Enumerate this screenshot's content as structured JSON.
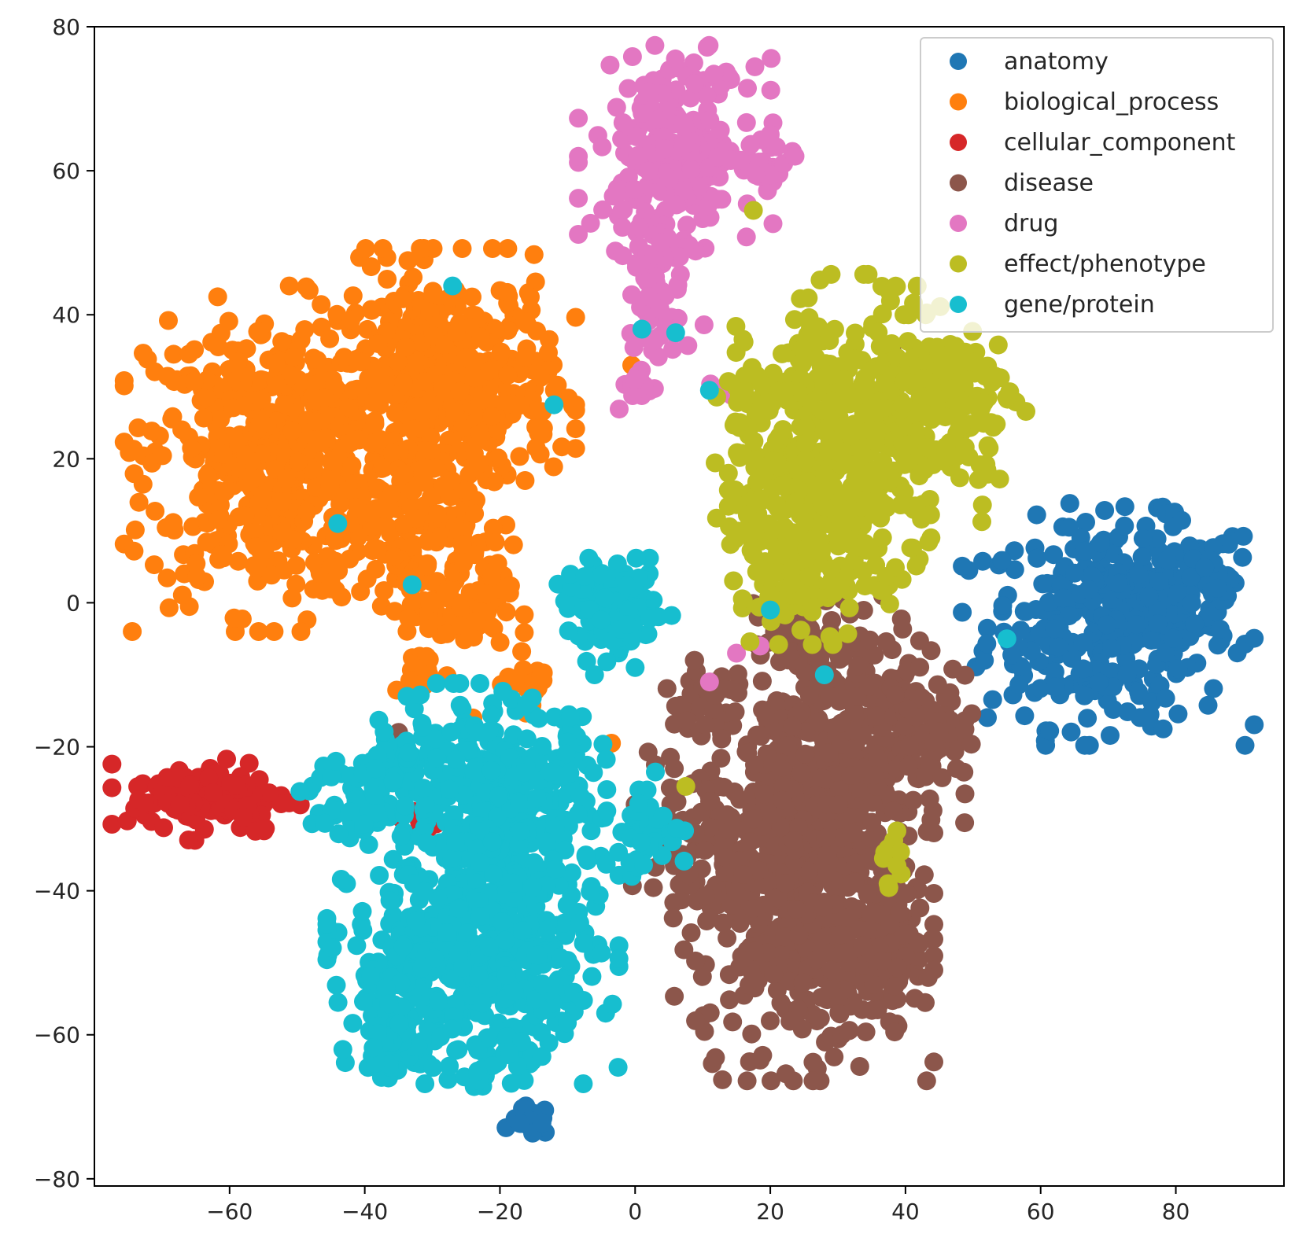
{
  "chart_data": {
    "type": "scatter",
    "title": "",
    "xlabel": "",
    "ylabel": "",
    "xlim": [
      -80,
      96
    ],
    "ylim": [
      -81,
      80
    ],
    "xticks": [
      -60,
      -40,
      -20,
      0,
      20,
      40,
      60,
      80
    ],
    "yticks": [
      80,
      60,
      40,
      20,
      0,
      -20,
      -40,
      -60,
      -80
    ],
    "xtick_labels": [
      "−60",
      "−40",
      "−20",
      "0",
      "20",
      "40",
      "60",
      "80"
    ],
    "ytick_labels": [
      "80",
      "60",
      "40",
      "20",
      "0",
      "−20",
      "−40",
      "−60",
      "−80"
    ],
    "grid": false,
    "legend_position": "top-right",
    "series": [
      {
        "name": "anatomy",
        "color": "#1f77b4",
        "clusters": [
          {
            "center": [
              70,
              -3
            ],
            "spread": [
              9,
              7
            ],
            "count": 340
          },
          {
            "center": [
              82,
              3
            ],
            "spread": [
              5,
              4
            ],
            "count": 70
          },
          {
            "center": [
              -15.5,
              -72
            ],
            "spread": [
              1.5,
              1
            ],
            "count": 16
          }
        ]
      },
      {
        "name": "biological_process",
        "color": "#ff7f0e",
        "clusters": [
          {
            "center": [
              -54,
              20
            ],
            "spread": [
              9,
              10
            ],
            "count": 520
          },
          {
            "center": [
              -28,
              30
            ],
            "spread": [
              8,
              8
            ],
            "count": 440
          },
          {
            "center": [
              -33,
              12
            ],
            "spread": [
              5,
              6
            ],
            "count": 120
          },
          {
            "center": [
              -26,
              0
            ],
            "spread": [
              4,
              4
            ],
            "count": 80
          },
          {
            "center": [
              -32,
              -10
            ],
            "spread": [
              2,
              1.5
            ],
            "count": 15
          },
          {
            "center": [
              -15,
              -11
            ],
            "spread": [
              2,
              2
            ],
            "count": 18
          }
        ],
        "points": [
          [
            -3.5,
            -19.5
          ],
          [
            -0.5,
            33
          ],
          [
            -24,
            -16
          ]
        ]
      },
      {
        "name": "cellular_component",
        "color": "#d62728",
        "clusters": [
          {
            "center": [
              -63,
              -27
            ],
            "spread": [
              6,
              2.5
            ],
            "count": 120
          },
          {
            "center": [
              -32,
              -31
            ],
            "spread": [
              1.5,
              1.2
            ],
            "count": 10
          }
        ],
        "points": [
          [
            -38.5,
            -26
          ]
        ]
      },
      {
        "name": "disease",
        "color": "#8c564b",
        "clusters": [
          {
            "center": [
              25,
              -40
            ],
            "spread": [
              8,
              11
            ],
            "count": 560
          },
          {
            "center": [
              32,
              -17
            ],
            "spread": [
              7,
              8
            ],
            "count": 320
          },
          {
            "center": [
              14,
              -34
            ],
            "spread": [
              6,
              6
            ],
            "count": 120
          },
          {
            "center": [
              37,
              -50
            ],
            "spread": [
              4,
              4
            ],
            "count": 100
          },
          {
            "center": [
              10,
              -14
            ],
            "spread": [
              3,
              2.5
            ],
            "count": 40
          },
          {
            "center": [
              23,
              -6
            ],
            "spread": [
              3,
              2.5
            ],
            "count": 30
          },
          {
            "center": [
              43,
              -17
            ],
            "spread": [
              3,
              4
            ],
            "count": 40
          }
        ],
        "points": [
          [
            17,
            60.5
          ],
          [
            18,
            61
          ],
          [
            38,
            35.5
          ],
          [
            3,
            -22.5
          ],
          [
            0,
            -28
          ],
          [
            -35,
            -18
          ]
        ]
      },
      {
        "name": "drug",
        "color": "#e377c2",
        "clusters": [
          {
            "center": [
              6,
              63
            ],
            "spread": [
              6,
              6
            ],
            "count": 240
          },
          {
            "center": [
              18,
              61
            ],
            "spread": [
              2.5,
              2
            ],
            "count": 25
          },
          {
            "center": [
              3,
              47
            ],
            "spread": [
              3,
              3.5
            ],
            "count": 45
          },
          {
            "center": [
              3,
              38
            ],
            "spread": [
              2,
              2.5
            ],
            "count": 25
          },
          {
            "center": [
              1,
              30.5
            ],
            "spread": [
              1.5,
              1.5
            ],
            "count": 15
          },
          {
            "center": [
              12.5,
              30
            ],
            "spread": [
              1,
              1
            ],
            "count": 6
          }
        ],
        "points": [
          [
            15,
            -7
          ],
          [
            11,
            -11
          ],
          [
            18.5,
            -6
          ],
          [
            18.5,
            20
          ]
        ]
      },
      {
        "name": "effect/phenotype",
        "color": "#bcbd22",
        "clusters": [
          {
            "center": [
              33,
              24
            ],
            "spread": [
              8,
              9
            ],
            "count": 360
          },
          {
            "center": [
              25,
              11
            ],
            "spread": [
              6,
              7
            ],
            "count": 230
          },
          {
            "center": [
              46,
              28
            ],
            "spread": [
              5,
              5
            ],
            "count": 120
          },
          {
            "center": [
              17,
              27
            ],
            "spread": [
              2.5,
              3
            ],
            "count": 30
          },
          {
            "center": [
              23,
              2
            ],
            "spread": [
              2.5,
              2
            ],
            "count": 25
          },
          {
            "center": [
              38,
              -36
            ],
            "spread": [
              1,
              2
            ],
            "count": 10
          }
        ],
        "points": [
          [
            7.5,
            -25.5
          ],
          [
            17.5,
            54.5
          ],
          [
            43,
            40
          ]
        ]
      },
      {
        "name": "gene/protein",
        "color": "#17becf",
        "clusters": [
          {
            "center": [
              -19,
              -28
            ],
            "spread": [
              7,
              7
            ],
            "count": 380
          },
          {
            "center": [
              -24,
              -50
            ],
            "spread": [
              9,
              7
            ],
            "count": 480
          },
          {
            "center": [
              -35,
              -60
            ],
            "spread": [
              4,
              3
            ],
            "count": 60
          },
          {
            "center": [
              -40,
              -27
            ],
            "spread": [
              4,
              3
            ],
            "count": 60
          },
          {
            "center": [
              -33,
              -20
            ],
            "spread": [
              3,
              3
            ],
            "count": 40
          },
          {
            "center": [
              -3,
              -1
            ],
            "spread": [
              3.5,
              3
            ],
            "count": 120
          },
          {
            "center": [
              2,
              -32
            ],
            "spread": [
              3,
              2.5
            ],
            "count": 40
          },
          {
            "center": [
              -20,
              -63
            ],
            "spread": [
              3,
              3
            ],
            "count": 25
          }
        ],
        "points": [
          [
            1,
            38
          ],
          [
            6,
            37.5
          ],
          [
            11,
            29.5
          ],
          [
            -12,
            27.5
          ],
          [
            -27,
            44
          ],
          [
            -33,
            2.5
          ],
          [
            55,
            -5
          ],
          [
            3,
            -23.5
          ],
          [
            -6,
            -10
          ],
          [
            0,
            -9
          ],
          [
            -16,
            -14
          ],
          [
            20,
            -1
          ],
          [
            -44,
            11
          ],
          [
            28,
            -10
          ]
        ]
      }
    ]
  }
}
